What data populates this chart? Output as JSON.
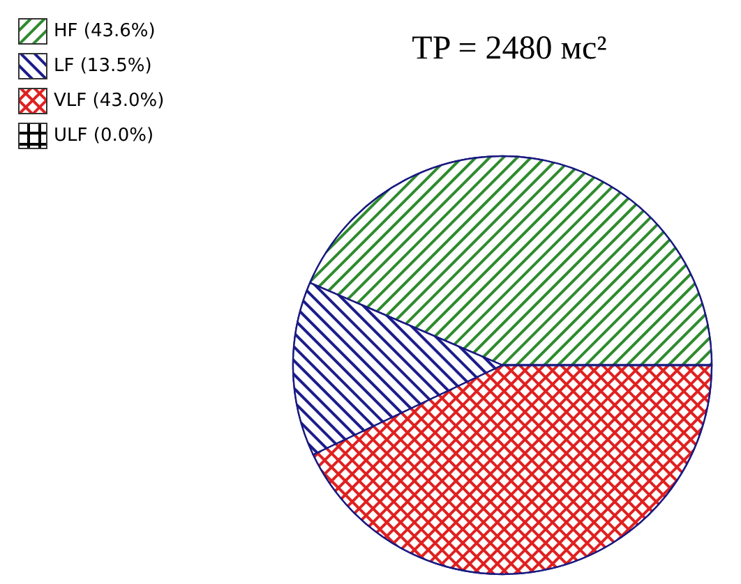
{
  "chart_data": {
    "type": "pie",
    "title": "TP = 2480 мс²",
    "categories": [
      "HF (43.6%)",
      "LF (13.5%)",
      "VLF (43.0%)",
      "ULF (0.0%)"
    ],
    "values": [
      43.6,
      13.5,
      43.0,
      0.0
    ],
    "colors": [
      "#2e8b2e",
      "#1c1c8c",
      "#e02020",
      "#000000"
    ],
    "legend": "top left"
  }
}
